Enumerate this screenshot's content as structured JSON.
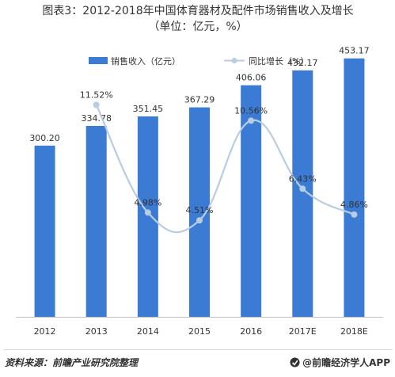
{
  "chart_data": {
    "type": "bar+line",
    "title_line1": "图表3：2012-2018年中国体育器材及配件市场销售收入及增长",
    "title_line2": "（单位：亿元，%）",
    "categories": [
      "2012",
      "2013",
      "2014",
      "2015",
      "2016",
      "2017E",
      "2018E"
    ],
    "series": [
      {
        "name": "销售收入（亿元）",
        "kind": "bar",
        "color": "#3b7bd4",
        "values": [
          300.2,
          334.78,
          351.45,
          367.29,
          406.06,
          432.17,
          453.17
        ],
        "labels": [
          "300.20",
          "334.78",
          "351.45",
          "367.29",
          "406.06",
          "432.17",
          "453.17"
        ]
      },
      {
        "name": "同比增长（%）",
        "kind": "line",
        "color": "#b8cde3",
        "values": [
          null,
          11.52,
          4.98,
          4.51,
          10.56,
          6.43,
          4.86
        ],
        "labels": [
          "",
          "11.52%",
          "4.98%",
          "4.51%",
          "10.56%",
          "6.43%",
          "4.86%"
        ]
      }
    ],
    "y_left_range": [
      0,
      500
    ],
    "y_right_range": [
      0,
      15
    ],
    "legend_position": "top",
    "grid": false
  },
  "footer": {
    "source": "资料来源：前瞻产业研究院整理",
    "brand": "@前瞻经济学人APP"
  }
}
